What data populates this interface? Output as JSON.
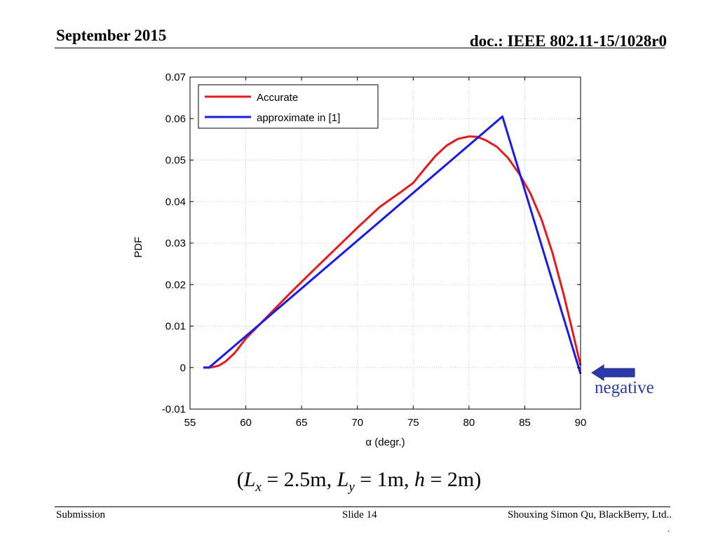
{
  "slide": {
    "header_left": "September 2015",
    "header_right": "doc.: IEEE 802.11-15/1028r0",
    "footer_left": "Submission",
    "footer_center": "Slide 14",
    "footer_right": "Shouxing Simon Qu, BlackBerry, Ltd..",
    "footer_dot": ".",
    "annotation": "negative",
    "caption": {
      "open": "(",
      "lx_var": "L",
      "lx_sub": "x",
      "lx_val": " = 2.5m, ",
      "ly_var": "L",
      "ly_sub": "y",
      "ly_val": " = 1m, ",
      "h_var": "h",
      "h_val": " = 2m)"
    },
    "colors": {
      "accurate": "#e41a1c",
      "approximate": "#1a1ae6",
      "annotation": "#2b3aa8"
    }
  },
  "chart_data": {
    "type": "line",
    "xlabel": "α  (degr.)",
    "ylabel": "PDF",
    "xlim": [
      55,
      90
    ],
    "ylim": [
      -0.01,
      0.07
    ],
    "xticks": [
      "55",
      "60",
      "65",
      "70",
      "75",
      "80",
      "85",
      "90"
    ],
    "yticks": [
      "-0.01",
      "0",
      "0.01",
      "0.02",
      "0.03",
      "0.04",
      "0.05",
      "0.06",
      "0.07"
    ],
    "grid": true,
    "legend_position": "top-left",
    "series": [
      {
        "name": "Accurate",
        "color": "#e41a1c",
        "x": [
          56.2,
          57,
          57.6,
          58.2,
          59,
          60,
          62,
          64,
          66,
          68,
          70,
          72,
          74,
          75,
          76,
          77,
          78,
          79,
          80,
          80.7,
          81.5,
          82.5,
          83.5,
          84.5,
          85.5,
          86.5,
          87.5,
          88.5,
          89.3,
          90
        ],
        "y": [
          0,
          0.0001,
          0.0005,
          0.0015,
          0.0035,
          0.007,
          0.0125,
          0.018,
          0.0233,
          0.0285,
          0.0337,
          0.0387,
          0.0425,
          0.0445,
          0.0478,
          0.051,
          0.0535,
          0.0551,
          0.0557,
          0.0556,
          0.0548,
          0.0532,
          0.0505,
          0.0467,
          0.042,
          0.0357,
          0.0275,
          0.0175,
          0.0085,
          0.0005
        ]
      },
      {
        "name": "approximate in [1]",
        "color": "#1a1ae6",
        "x": [
          56.2,
          56.7,
          83.0,
          90.0
        ],
        "y": [
          0,
          0,
          0.0605,
          -0.0015
        ]
      }
    ]
  }
}
